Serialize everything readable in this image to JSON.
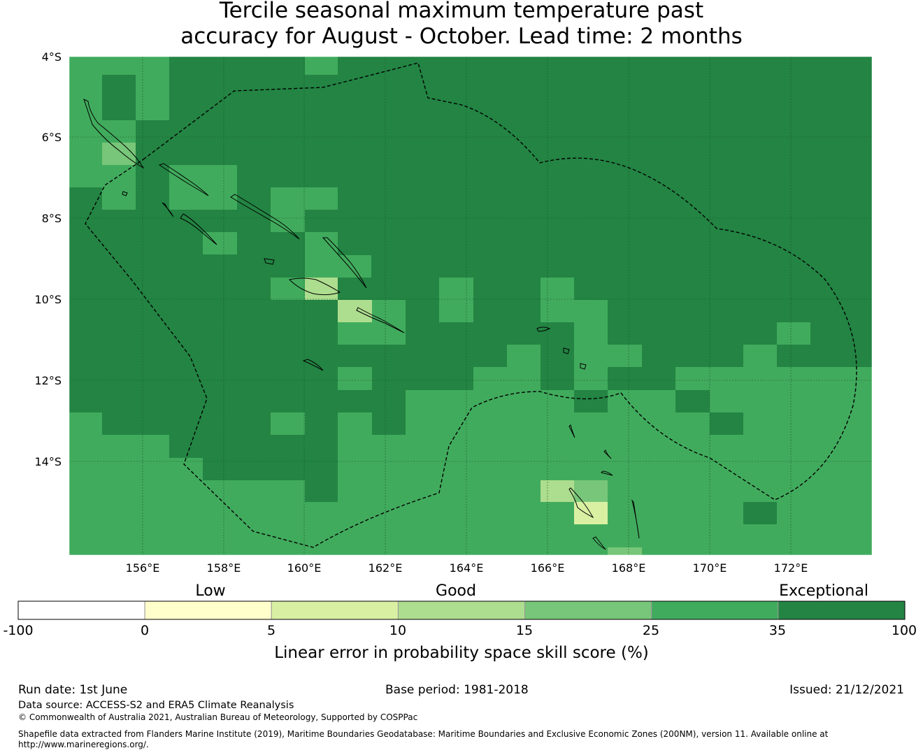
{
  "title": {
    "line1": "Tercile seasonal maximum temperature past",
    "line2": "accuracy for August - October. Lead time: 2 months"
  },
  "map": {
    "lat_labels": [
      "4°S",
      "6°S",
      "8°S",
      "10°S",
      "12°S",
      "14°S"
    ],
    "lon_labels": [
      "156°E",
      "158°E",
      "160°E",
      "162°E",
      "164°E",
      "166°E",
      "168°E",
      "170°E",
      "172°E"
    ],
    "grid_cell_colors_legend": {
      "0-5": "#ffffcc",
      "5-10": "#d9f0a3",
      "10-15": "#addd8e",
      "15-25": "#78c679",
      "25-35": "#41ab5d",
      "35-100": "#238443"
    }
  },
  "colorbar": {
    "category_labels": [
      "Low",
      "Good",
      "Exceptional"
    ],
    "ticks": [
      "-100",
      "0",
      "5",
      "10",
      "15",
      "25",
      "35",
      "100"
    ],
    "colors": [
      "#ffffff",
      "#ffffcc",
      "#d9f0a3",
      "#addd8e",
      "#78c679",
      "#41ab5d",
      "#238443"
    ],
    "title": "Linear error in probability space skill score (%)"
  },
  "footer": {
    "run_date": "Run date: 1st June",
    "base_period": "Base period: 1981-2018",
    "issued": "Issued: 21/12/2021",
    "data_source": "Data source: ACCESS-S2 and ERA5 Climate Reanalysis",
    "copyright": "© Commonwealth of Australia 2021, Australian Bureau of Meteorology, Supported by COSPPac",
    "shapefile": "Shapefile data extracted from Flanders Marine Institute (2019), Maritime Boundaries Geodatabase: Maritime Boundaries and Exclusive Economic Zones (200NM), version 11. Available online at http://www.marineregions.org/."
  }
}
